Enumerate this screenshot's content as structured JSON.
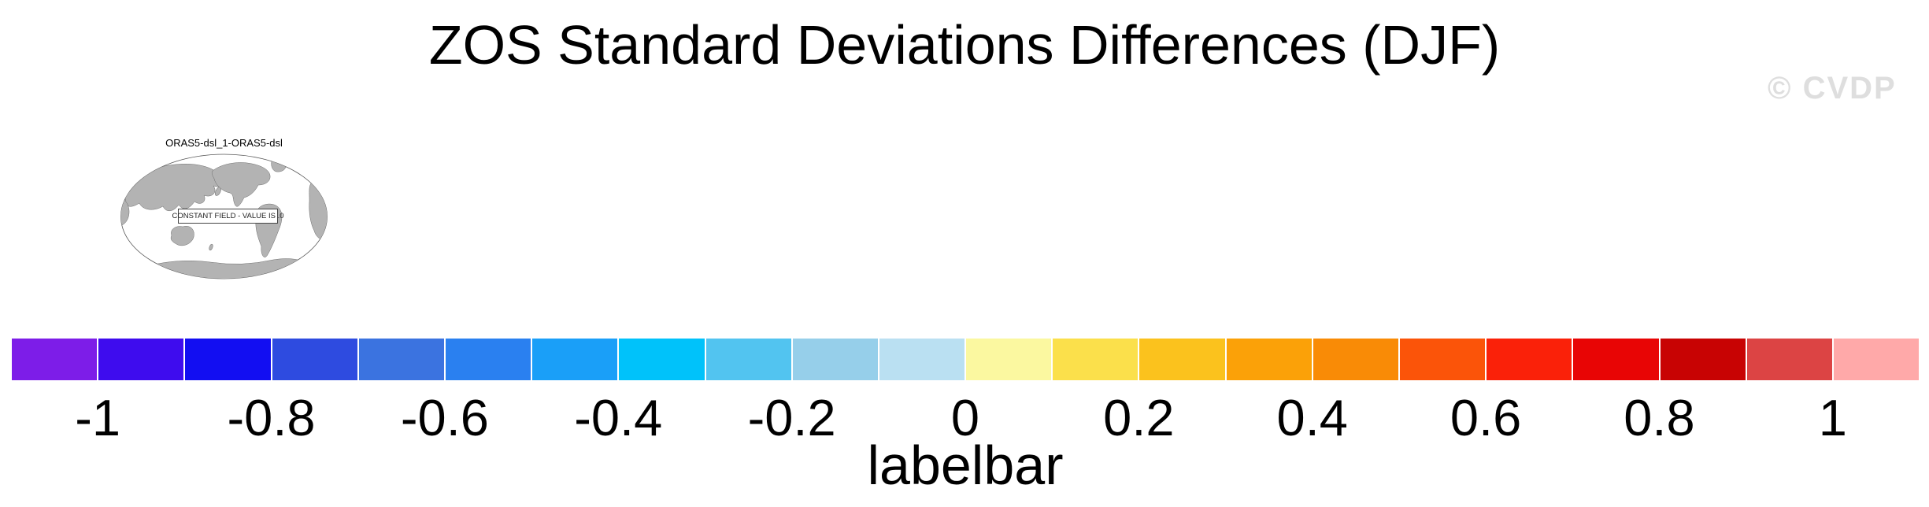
{
  "title": "ZOS Standard Deviations Differences (DJF)",
  "watermark": "© CVDP",
  "map": {
    "title": "ORAS5-dsl_1-ORAS5-dsl",
    "overlay_text": "CONSTANT FIELD - VALUE IS .0",
    "land_color": "#b3b3b3",
    "outline_color": "#6b6b6b"
  },
  "colorbar": {
    "label": "labelbar",
    "tick_labels": [
      "-1",
      "-0.8",
      "-0.6",
      "-0.4",
      "-0.2",
      "0",
      "0.2",
      "0.4",
      "0.6",
      "0.8",
      "1"
    ],
    "colors": [
      "#7D1DE8",
      "#3E0CEE",
      "#120EF2",
      "#2E4BE0",
      "#3B73E0",
      "#2A80F0",
      "#1A9FF8",
      "#00C2FA",
      "#52C4F0",
      "#96CFEA",
      "#BAE0F2",
      "#FBF8A0",
      "#FBE04B",
      "#FBC21D",
      "#FBA108",
      "#F98B06",
      "#FB5409",
      "#FA2109",
      "#E80505",
      "#C80303",
      "#DC4444",
      "#FFA9A9"
    ]
  },
  "chart_data": {
    "type": "heatmap",
    "title": "ZOS Standard Deviations Differences (DJF)",
    "subtitle": "ORAS5-dsl_1-ORAS5-dsl",
    "annotation": "CONSTANT FIELD - VALUE IS .0",
    "field_value": 0,
    "colorbar_label": "labelbar",
    "tick_values": [
      -1,
      -0.8,
      -0.6,
      -0.4,
      -0.2,
      0,
      0.2,
      0.4,
      0.6,
      0.8,
      1
    ],
    "level_range": [
      -1.1,
      1.1
    ],
    "level_step": 0.1,
    "n_color_boxes": 22,
    "legend_position": "bottom"
  }
}
